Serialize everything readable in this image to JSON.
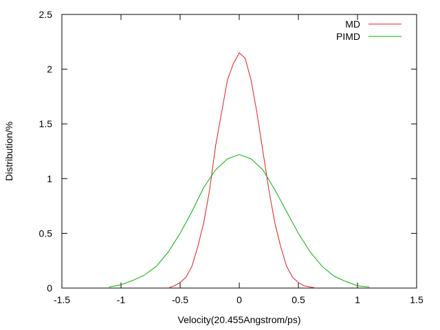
{
  "chart_data": {
    "type": "line",
    "xlabel": "Velocity(20.455Angstrom/ps)",
    "ylabel": "Distribution/%",
    "xlim": [
      -1.5,
      1.5
    ],
    "ylim": [
      0,
      2.5
    ],
    "xticks": [
      "-1.5",
      "-1",
      "-0.5",
      "0",
      "0.5",
      "1",
      "1.5"
    ],
    "yticks": [
      "0",
      "0.5",
      "1",
      "1.5",
      "2",
      "2.5"
    ],
    "legend_position": "top-right",
    "series": [
      {
        "name": "MD",
        "color": "#e41a1c",
        "x": [
          -0.6,
          -0.55,
          -0.5,
          -0.45,
          -0.4,
          -0.35,
          -0.3,
          -0.25,
          -0.2,
          -0.15,
          -0.1,
          -0.05,
          0,
          0.05,
          0.1,
          0.15,
          0.2,
          0.25,
          0.3,
          0.35,
          0.4,
          0.45,
          0.5,
          0.55,
          0.6,
          0.65
        ],
        "y": [
          0.0,
          0.02,
          0.05,
          0.1,
          0.2,
          0.38,
          0.6,
          0.9,
          1.3,
          1.6,
          1.9,
          2.05,
          2.15,
          2.1,
          1.9,
          1.6,
          1.25,
          0.9,
          0.6,
          0.38,
          0.2,
          0.1,
          0.05,
          0.02,
          0.01,
          0.0
        ]
      },
      {
        "name": "PIMD",
        "color": "#00b000",
        "x": [
          -1.1,
          -1.0,
          -0.9,
          -0.8,
          -0.7,
          -0.6,
          -0.5,
          -0.4,
          -0.3,
          -0.2,
          -0.1,
          0,
          0.1,
          0.2,
          0.3,
          0.4,
          0.5,
          0.6,
          0.7,
          0.8,
          0.9,
          1.0,
          1.1
        ],
        "y": [
          0.01,
          0.03,
          0.07,
          0.12,
          0.2,
          0.33,
          0.5,
          0.7,
          0.92,
          1.08,
          1.18,
          1.22,
          1.18,
          1.08,
          0.9,
          0.7,
          0.5,
          0.33,
          0.2,
          0.11,
          0.06,
          0.02,
          0.01
        ]
      }
    ]
  }
}
